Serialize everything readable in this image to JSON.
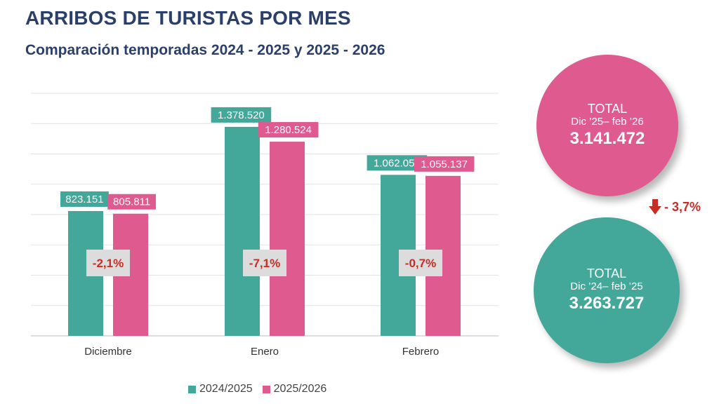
{
  "title": "ARRIBOS DE TURISTAS POR MES",
  "subtitle": "Comparación temporadas 2024 - 2025 y 2025 - 2026",
  "colors": {
    "series_2024_2025": "#43a799",
    "series_2025_2026": "#de5a8f",
    "title": "#2b3f6b",
    "negative": "#c92b25",
    "badge_bg": "#dcdcdc"
  },
  "chart_data": {
    "type": "bar",
    "categories": [
      "Diciembre",
      "Enero",
      "Febrero"
    ],
    "series": [
      {
        "name": "2024/2025",
        "values": [
          823151,
          1378520,
          1062056
        ],
        "labels": [
          "823.151",
          "1.378.520",
          "1.062.056"
        ]
      },
      {
        "name": "2025/2026",
        "values": [
          805811,
          1280524,
          1055137
        ],
        "labels": [
          "805.811",
          "1.280.524",
          "1.055.137"
        ]
      }
    ],
    "changes": [
      "-2,1%",
      "-7,1%",
      "-0,7%"
    ],
    "ylim": [
      0,
      1600000
    ],
    "grid": true,
    "legend": "bottom",
    "xlabel": "",
    "ylabel": ""
  },
  "totals": {
    "current": {
      "label": "TOTAL",
      "period": "Dic ’25– feb ’26",
      "value": "3.141.472"
    },
    "previous": {
      "label": "TOTAL",
      "period": "Dic ’24– feb ’25",
      "value": "3.263.727"
    },
    "change": "- 3,7%",
    "change_icon": "down-arrow-icon"
  }
}
